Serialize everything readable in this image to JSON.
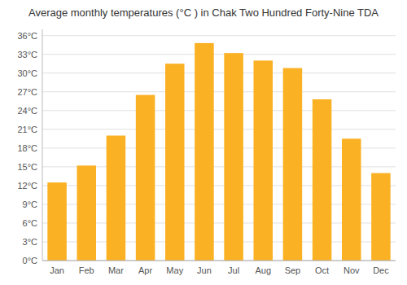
{
  "chart_data": {
    "type": "bar",
    "title": "Average monthly temperatures (°C ) in Chak Two Hundred Forty-Nine TDA",
    "categories": [
      "Jan",
      "Feb",
      "Mar",
      "Apr",
      "May",
      "Jun",
      "Jul",
      "Aug",
      "Sep",
      "Oct",
      "Nov",
      "Dec"
    ],
    "values": [
      12.5,
      15.2,
      20.0,
      26.5,
      31.5,
      34.8,
      33.2,
      32.0,
      30.8,
      25.8,
      19.5,
      14.0
    ],
    "color": "#FBB124",
    "ylim": [
      0,
      37
    ],
    "yticks": [
      {
        "value": 0,
        "label": "0°C"
      },
      {
        "value": 3,
        "label": "3°C"
      },
      {
        "value": 6,
        "label": "6°C"
      },
      {
        "value": 9,
        "label": "9°C"
      },
      {
        "value": 12,
        "label": "12°C"
      },
      {
        "value": 15,
        "label": "15°C"
      },
      {
        "value": 18,
        "label": "18°C"
      },
      {
        "value": 21,
        "label": "21°C"
      },
      {
        "value": 24,
        "label": "24°C"
      },
      {
        "value": 27,
        "label": "27°C"
      },
      {
        "value": 30,
        "label": "30°C"
      },
      {
        "value": 33,
        "label": "33°C"
      },
      {
        "value": 36,
        "label": "36°C"
      }
    ],
    "grid": true
  }
}
